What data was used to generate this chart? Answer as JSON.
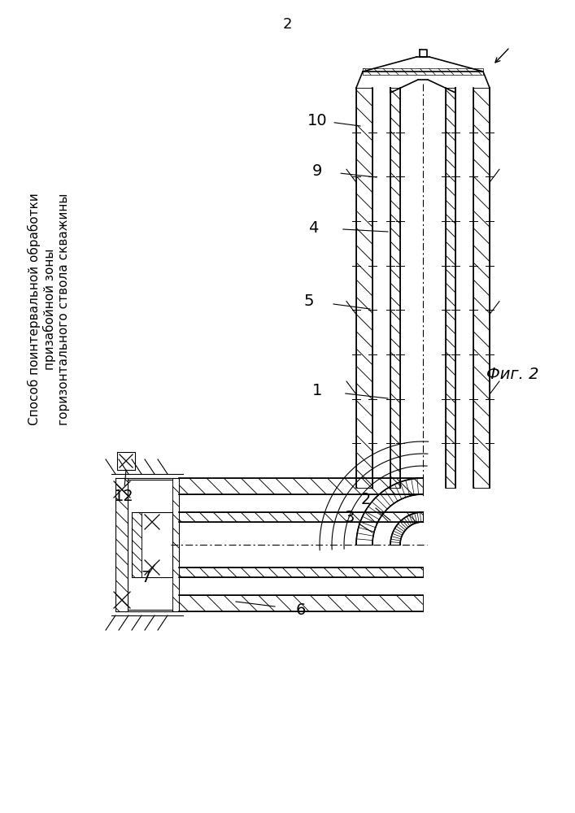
{
  "title_number": "2",
  "fig_label": "Фиг. 2",
  "title_text": "Способ поинтервальной обработки\nпризабойной зоны\nгоризонтального ствола скважины",
  "bg_color": "#ffffff",
  "line_color": "#000000"
}
